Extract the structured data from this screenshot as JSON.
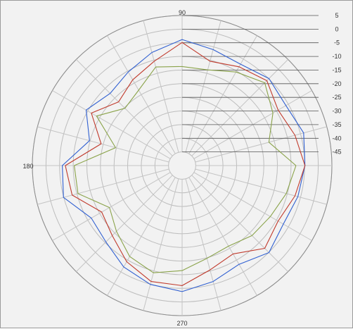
{
  "chart_data": {
    "type": "polar-line",
    "angle_labels": {
      "a90": "90",
      "a180": "180",
      "a270": "270"
    },
    "radial_ticks": [
      "5",
      "0",
      "-5",
      "-10",
      "-15",
      "-20",
      "-25",
      "-30",
      "-35",
      "-40",
      "-45"
    ],
    "r_range": [
      -45,
      5
    ],
    "grid": true,
    "legend": "none",
    "series": [
      {
        "color": "#2f5fd1",
        "points": [
          [
            0,
            -4
          ],
          [
            15,
            -3
          ],
          [
            30,
            -5
          ],
          [
            45,
            -4
          ],
          [
            60,
            -6
          ],
          [
            75,
            -5
          ],
          [
            90,
            -3
          ],
          [
            105,
            -6
          ],
          [
            120,
            -9
          ],
          [
            135,
            -11
          ],
          [
            150,
            -8
          ],
          [
            165,
            -13
          ],
          [
            180,
            -5
          ],
          [
            195,
            -4
          ],
          [
            210,
            -10
          ],
          [
            225,
            -9
          ],
          [
            240,
            -6
          ],
          [
            255,
            -4
          ],
          [
            270,
            -3
          ],
          [
            285,
            -5
          ],
          [
            300,
            -7
          ],
          [
            315,
            -4
          ],
          [
            330,
            -6
          ],
          [
            345,
            -5
          ]
        ]
      },
      {
        "color": "#c0392b",
        "points": [
          [
            0,
            -4
          ],
          [
            15,
            -6
          ],
          [
            30,
            -8
          ],
          [
            45,
            -5
          ],
          [
            60,
            -7
          ],
          [
            75,
            -9
          ],
          [
            90,
            -4
          ],
          [
            105,
            -9
          ],
          [
            120,
            -12
          ],
          [
            135,
            -15
          ],
          [
            150,
            -10
          ],
          [
            165,
            -17
          ],
          [
            180,
            -6
          ],
          [
            195,
            -7
          ],
          [
            210,
            -14
          ],
          [
            225,
            -12
          ],
          [
            240,
            -8
          ],
          [
            255,
            -5
          ],
          [
            270,
            -5
          ],
          [
            285,
            -9
          ],
          [
            300,
            -11
          ],
          [
            315,
            -6
          ],
          [
            330,
            -8
          ],
          [
            345,
            -6
          ]
        ]
      },
      {
        "color": "#8aa34a",
        "points": [
          [
            0,
            -7
          ],
          [
            15,
            -15
          ],
          [
            30,
            -10
          ],
          [
            45,
            -6
          ],
          [
            60,
            -9
          ],
          [
            75,
            -12
          ],
          [
            90,
            -12
          ],
          [
            105,
            -11
          ],
          [
            120,
            -16
          ],
          [
            135,
            -18
          ],
          [
            150,
            -12
          ],
          [
            165,
            -22
          ],
          [
            180,
            -9
          ],
          [
            195,
            -9
          ],
          [
            210,
            -17
          ],
          [
            225,
            -14
          ],
          [
            240,
            -10
          ],
          [
            255,
            -8
          ],
          [
            270,
            -10
          ],
          [
            285,
            -13
          ],
          [
            300,
            -14
          ],
          [
            315,
            -12
          ],
          [
            330,
            -11
          ],
          [
            345,
            -9
          ]
        ]
      }
    ]
  }
}
